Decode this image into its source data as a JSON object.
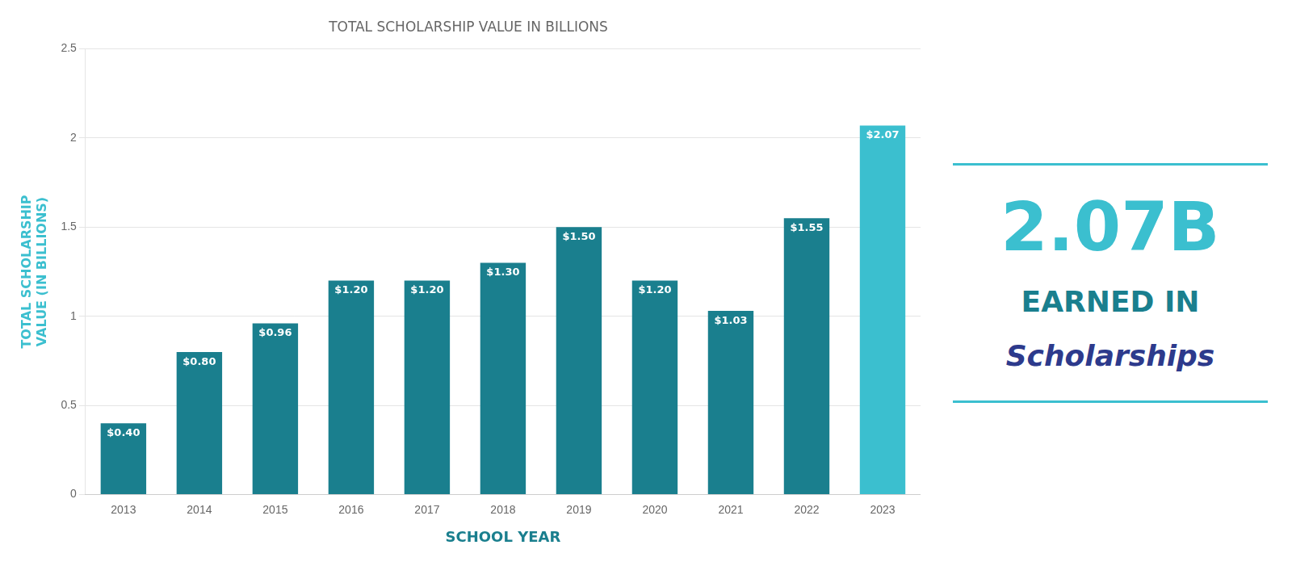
{
  "chart_data": {
    "type": "bar",
    "title": "TOTAL SCHOLARSHIP VALUE IN BILLIONS",
    "xlabel": "SCHOOL YEAR",
    "ylabel": "TOTAL SCHOLARSHIP\nVALUE (IN BILLIONS)",
    "categories": [
      "2013",
      "2014",
      "2015",
      "2016",
      "2017",
      "2018",
      "2019",
      "2020",
      "2021",
      "2022",
      "2023"
    ],
    "values": [
      0.4,
      0.8,
      0.96,
      1.2,
      1.2,
      1.3,
      1.5,
      1.2,
      1.03,
      1.55,
      2.07
    ],
    "value_labels": [
      "$0.40",
      "$0.80",
      "$0.96",
      "$1.20",
      "$1.20",
      "$1.30",
      "$1.50",
      "$1.20",
      "$1.03",
      "$1.55",
      "$2.07"
    ],
    "data_labels": true,
    "colors": [
      "#1a7f8e",
      "#1a7f8e",
      "#1a7f8e",
      "#1a7f8e",
      "#1a7f8e",
      "#1a7f8e",
      "#1a7f8e",
      "#1a7f8e",
      "#1a7f8e",
      "#1a7f8e",
      "#3bbfcf"
    ],
    "ylim": [
      0,
      2.5
    ],
    "yticks": [
      0,
      0.5,
      1,
      1.5,
      2,
      2.5
    ],
    "grid": true,
    "annotations": [
      "2.07B",
      "EARNED IN",
      "Scholarships"
    ]
  }
}
